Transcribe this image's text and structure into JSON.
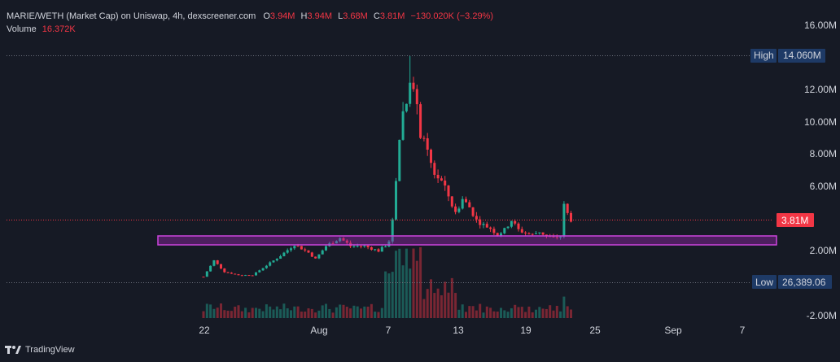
{
  "legend": {
    "title": "MARIE/WETH (Market Cap) on Uniswap, 4h, dexscreener.com",
    "o_label": "O",
    "o_value": "3.94M",
    "h_label": "H",
    "h_value": "3.94M",
    "l_label": "L",
    "l_value": "3.68M",
    "c_label": "C",
    "c_value": "3.81M",
    "change": "−130.020K (−3.29%)",
    "volume_label": "Volume",
    "volume_value": "16.372K"
  },
  "brand": "TradingView",
  "colors": {
    "background": "#161a25",
    "up": "#22ab94",
    "down": "#f23645",
    "zone_fill": "#9c27b0",
    "zone_border": "#cc44dd",
    "text": "#d1d4dc",
    "tag_blue": "#1e3a66"
  },
  "chart_data": {
    "type": "candlestick",
    "x_ticks": [
      "22",
      "Aug",
      "7",
      "13",
      "19",
      "25",
      "Sep",
      "7"
    ],
    "y_ticks": [
      "16.00M",
      "12.00M",
      "10.00M",
      "8.00M",
      "6.00M",
      "2.00M",
      "-2.00M"
    ],
    "ylim": [
      -2000000,
      16000000
    ],
    "grid": false,
    "price_tags": {
      "high_label": "High",
      "high_value": "14.060M",
      "high": 14060000,
      "last_value": "3.81M",
      "last": 3810000,
      "low_label": "Low",
      "low_value": "26,389.06",
      "low": 26389.06
    },
    "zone": {
      "from": 2350000,
      "to": 2900000
    },
    "price_path": [
      [
        0,
        400000
      ],
      [
        3,
        1400000
      ],
      [
        6,
        700000
      ],
      [
        10,
        500000
      ],
      [
        14,
        500000
      ],
      [
        18,
        1100000
      ],
      [
        22,
        1700000
      ],
      [
        26,
        2400000
      ],
      [
        30,
        1900000
      ],
      [
        32,
        1500000
      ],
      [
        35,
        2300000
      ],
      [
        39,
        2800000
      ],
      [
        42,
        2300000
      ],
      [
        46,
        2300000
      ],
      [
        50,
        2000000
      ],
      [
        53,
        2500000
      ],
      [
        54,
        4000000
      ],
      [
        55,
        6500000
      ],
      [
        56,
        9000000
      ],
      [
        57,
        10600000
      ],
      [
        58,
        11200000
      ],
      [
        59,
        12900000
      ],
      [
        60,
        11800000
      ],
      [
        61,
        10700000
      ],
      [
        62,
        9300000
      ],
      [
        64,
        8000000
      ],
      [
        66,
        6800000
      ],
      [
        68,
        6300000
      ],
      [
        70,
        5400000
      ],
      [
        72,
        4300000
      ],
      [
        74,
        5200000
      ],
      [
        76,
        4700000
      ],
      [
        78,
        3900000
      ],
      [
        80,
        3600000
      ],
      [
        82,
        3400000
      ],
      [
        84,
        3000000
      ],
      [
        86,
        3300000
      ],
      [
        88,
        3900000
      ],
      [
        90,
        3300000
      ],
      [
        92,
        3100000
      ],
      [
        94,
        3000000
      ],
      [
        96,
        3200000
      ],
      [
        98,
        2900000
      ],
      [
        100,
        2800000
      ],
      [
        102,
        2900000
      ],
      [
        103,
        4800000
      ],
      [
        104,
        4300000
      ],
      [
        105,
        3810000
      ]
    ]
  }
}
